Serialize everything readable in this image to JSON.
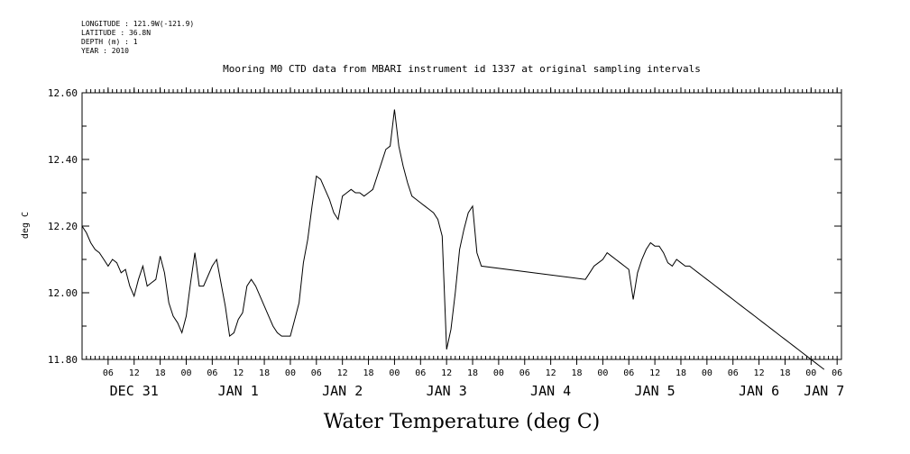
{
  "meta": {
    "longitude": "LONGITUDE : 121.9W(-121.9)",
    "latitude": "LATITUDE : 36.8N",
    "depth": "DEPTH (m) : 1",
    "year": "YEAR : 2010"
  },
  "chart_data": {
    "type": "line",
    "title": "Mooring M0 CTD data from MBARI instrument id 1337 at original sampling intervals",
    "xlabel": "Water Temperature (deg C)",
    "ylabel": "deg C",
    "ylim": [
      11.8,
      12.6
    ],
    "xlim": [
      "2009-12-31T01:00",
      "2010-01-07T12:00"
    ],
    "yticks": [
      "11.80",
      "12.00",
      "12.20",
      "12.40",
      "12.60"
    ],
    "hour_ticks": [
      {
        "t": 5,
        "label": "06"
      },
      {
        "t": 11,
        "label": "12"
      },
      {
        "t": 17,
        "label": "18"
      },
      {
        "t": 23,
        "label": "00"
      },
      {
        "t": 29,
        "label": "06"
      },
      {
        "t": 35,
        "label": "12"
      },
      {
        "t": 41,
        "label": "18"
      },
      {
        "t": 47,
        "label": "00"
      },
      {
        "t": 53,
        "label": "06"
      },
      {
        "t": 59,
        "label": "12"
      },
      {
        "t": 65,
        "label": "18"
      },
      {
        "t": 71,
        "label": "00"
      },
      {
        "t": 77,
        "label": "06"
      },
      {
        "t": 83,
        "label": "12"
      },
      {
        "t": 89,
        "label": "18"
      },
      {
        "t": 95,
        "label": "00"
      },
      {
        "t": 101,
        "label": "06"
      },
      {
        "t": 107,
        "label": "12"
      },
      {
        "t": 113,
        "label": "18"
      },
      {
        "t": 119,
        "label": "00"
      },
      {
        "t": 125,
        "label": "06"
      },
      {
        "t": 131,
        "label": "12"
      },
      {
        "t": 137,
        "label": "18"
      },
      {
        "t": 143,
        "label": "00"
      },
      {
        "t": 149,
        "label": "06"
      },
      {
        "t": 155,
        "label": "12"
      },
      {
        "t": 161,
        "label": "18"
      },
      {
        "t": 167,
        "label": "00"
      },
      {
        "t": 173,
        "label": "06"
      }
    ],
    "day_labels": [
      {
        "t": 11,
        "label": "DEC 31"
      },
      {
        "t": 35,
        "label": "JAN  1"
      },
      {
        "t": 59,
        "label": "JAN  2"
      },
      {
        "t": 83,
        "label": "JAN  3"
      },
      {
        "t": 107,
        "label": "JAN  4"
      },
      {
        "t": 131,
        "label": "JAN  5"
      },
      {
        "t": 155,
        "label": "JAN  6"
      },
      {
        "t": 170,
        "label": "JAN  7"
      }
    ],
    "x_hours": [
      -1,
      0,
      1,
      2,
      3,
      4,
      5,
      6,
      7,
      8,
      9,
      10,
      11,
      12,
      13,
      14,
      15,
      16,
      17,
      18,
      19,
      20,
      21,
      22,
      23,
      24,
      25,
      26,
      27,
      28,
      29,
      30,
      31,
      32,
      33,
      34,
      35,
      36,
      37,
      38,
      39,
      40,
      41,
      42,
      43,
      44,
      45,
      46,
      47,
      48,
      49,
      50,
      51,
      52,
      53,
      54,
      55,
      56,
      57,
      58,
      59,
      60,
      61,
      62,
      63,
      64,
      65,
      66,
      67,
      68,
      69,
      70,
      71,
      72,
      73,
      74,
      75,
      76,
      77,
      78,
      79,
      80,
      81,
      82,
      83,
      84,
      85,
      86,
      87,
      88,
      89,
      90,
      91,
      115,
      116,
      117,
      118,
      119,
      120,
      121,
      122,
      123,
      124,
      125,
      126,
      127,
      128,
      129,
      130,
      131,
      132,
      133,
      134,
      135,
      136,
      137,
      138,
      139,
      140,
      141,
      142,
      143,
      144,
      145,
      146,
      147,
      148,
      149,
      150,
      151,
      152,
      153,
      154,
      155,
      156,
      157,
      158,
      159,
      160,
      161,
      162,
      163,
      164,
      165,
      166,
      167,
      168,
      169,
      170
    ],
    "series": [
      {
        "values": [
          12.2,
          12.18,
          12.15,
          12.13,
          12.12,
          12.1,
          12.08,
          12.1,
          12.09,
          12.06,
          12.07,
          12.02,
          11.99,
          12.04,
          12.08,
          12.02,
          12.03,
          12.04,
          12.11,
          12.06,
          11.97,
          11.93,
          11.91,
          11.88,
          11.93,
          12.03,
          12.12,
          12.02,
          12.02,
          12.05,
          12.08,
          12.1,
          12.03,
          11.96,
          11.87,
          11.88,
          11.92,
          11.94,
          12.02,
          12.04,
          12.02,
          11.99,
          11.96,
          11.93,
          11.9,
          11.88,
          11.87,
          11.87,
          11.87,
          11.92,
          11.97,
          12.09,
          12.16,
          12.26,
          12.35,
          12.34,
          12.31,
          12.28,
          12.24,
          12.22,
          12.29,
          12.3,
          12.31,
          12.3,
          12.3,
          12.29,
          12.3,
          12.31,
          12.35,
          12.39,
          12.43,
          12.44,
          12.55,
          12.44,
          12.38,
          12.33,
          12.29,
          12.28,
          12.27,
          12.26,
          12.25,
          12.24,
          12.22,
          12.17,
          11.83,
          11.89,
          12.0,
          12.13,
          12.19,
          12.24,
          12.26,
          12.12,
          12.08,
          12.04,
          12.06,
          12.08,
          12.09,
          12.1,
          12.12,
          12.11,
          12.1,
          12.09,
          12.08,
          12.07,
          11.98,
          12.06,
          12.1,
          12.13,
          12.15,
          12.14,
          12.14,
          12.12,
          12.09,
          12.08,
          12.1,
          12.09,
          12.08,
          12.08,
          12.07,
          12.06,
          12.05,
          12.04,
          12.03,
          12.02,
          12.01,
          12.0,
          11.99,
          11.98,
          11.97,
          11.96,
          11.95,
          11.94,
          11.93,
          11.92,
          11.91,
          11.9,
          11.89,
          11.88,
          11.87,
          11.86,
          11.85,
          11.84,
          11.83,
          11.82,
          11.81,
          11.8,
          11.79,
          11.78,
          11.77
        ]
      }
    ]
  }
}
